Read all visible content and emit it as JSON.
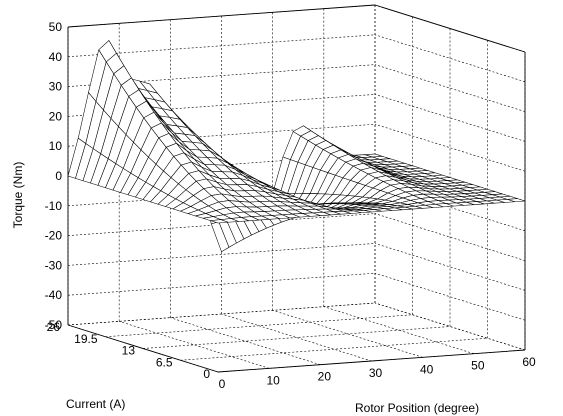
{
  "chart_data": {
    "type": "surface",
    "title": "",
    "xlabel": "Rotor Position (degree)",
    "ylabel": "Current (A)",
    "zlabel": "Torque (Nm)",
    "xlim": [
      0,
      60
    ],
    "ylim": [
      0,
      26
    ],
    "zlim": [
      -50,
      50
    ],
    "xticks": [
      "0",
      "10",
      "20",
      "30",
      "40",
      "50",
      "60"
    ],
    "yticks": [
      "0",
      "6.5",
      "13",
      "19.5",
      "26"
    ],
    "zticks": [
      "-50",
      "-40",
      "-30",
      "-20",
      "-10",
      "0",
      "10",
      "20",
      "30",
      "40",
      "50"
    ],
    "grid": true,
    "colors": {
      "mesh_edge": "#000000",
      "mesh_face": "#ffffff",
      "background": "#ffffff"
    },
    "surface": {
      "description_of_values": "torque vs rotor position and current; peak positive torque near low rotor positions at max current, negative trough near mid positions",
      "rotor_position_samples": [
        0,
        2,
        4,
        6,
        8,
        10,
        12,
        14,
        16,
        18,
        20,
        22,
        24,
        26,
        28,
        30,
        32,
        34,
        36,
        38,
        40,
        42,
        44,
        46,
        48,
        50,
        52,
        54,
        56,
        58,
        60
      ],
      "current_samples": [
        0,
        1.3,
        2.6,
        3.9,
        5.2,
        6.5,
        7.8,
        9.1,
        10.4,
        11.7,
        13,
        14.3,
        15.6,
        16.9,
        18.2,
        19.5,
        20.8,
        22.1,
        23.4,
        24.7,
        26
      ],
      "peak_torque": 42,
      "min_torque": -36
    }
  }
}
